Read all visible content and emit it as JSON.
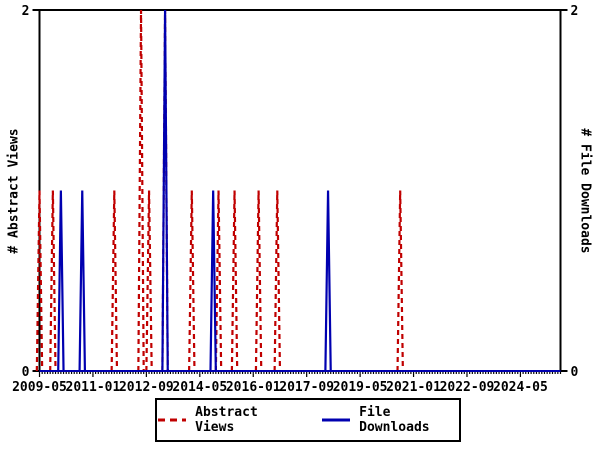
{
  "chart_data": {
    "type": "line",
    "title": "",
    "x_axis": {
      "start_month": "2009-05",
      "end_month": "2025-08",
      "major_tick_labels": [
        "2009-05",
        "2011-01",
        "2012-09",
        "2014-05",
        "2016-01",
        "2017-09",
        "2019-05",
        "2021-01",
        "2022-09",
        "2024-05"
      ],
      "major_tick_every_months": 20,
      "minor_tick_every_months": 1
    },
    "y_left": {
      "label": "# Abstract Views",
      "range": [
        0,
        2
      ],
      "tick_values": [
        0,
        2
      ]
    },
    "y_right": {
      "label": "# File Downloads",
      "range": [
        0,
        2
      ],
      "tick_values": [
        0,
        2
      ]
    },
    "grid": false,
    "legend_position": "bottom-center",
    "series": [
      {
        "name": "Abstract Views",
        "color": "#c00000",
        "line_style": "dashed",
        "axis": "left",
        "baseline_value": 0,
        "spikes": [
          {
            "month": "2009-05",
            "value": 1
          },
          {
            "month": "2009-10",
            "value": 1
          },
          {
            "month": "2011-09",
            "value": 1
          },
          {
            "month": "2012-07",
            "value": 2
          },
          {
            "month": "2012-10",
            "value": 1
          },
          {
            "month": "2013-04",
            "value": 2
          },
          {
            "month": "2014-02",
            "value": 1
          },
          {
            "month": "2014-12",
            "value": 1
          },
          {
            "month": "2015-06",
            "value": 1
          },
          {
            "month": "2016-03",
            "value": 1
          },
          {
            "month": "2016-10",
            "value": 1
          },
          {
            "month": "2020-08",
            "value": 1
          }
        ]
      },
      {
        "name": "File Downloads",
        "color": "#0000b0",
        "line_style": "solid",
        "axis": "right",
        "baseline_value": 0,
        "spikes": [
          {
            "month": "2010-01",
            "value": 1
          },
          {
            "month": "2010-09",
            "value": 1
          },
          {
            "month": "2013-04",
            "value": 2
          },
          {
            "month": "2014-10",
            "value": 1
          },
          {
            "month": "2018-05",
            "value": 1
          }
        ]
      }
    ]
  }
}
